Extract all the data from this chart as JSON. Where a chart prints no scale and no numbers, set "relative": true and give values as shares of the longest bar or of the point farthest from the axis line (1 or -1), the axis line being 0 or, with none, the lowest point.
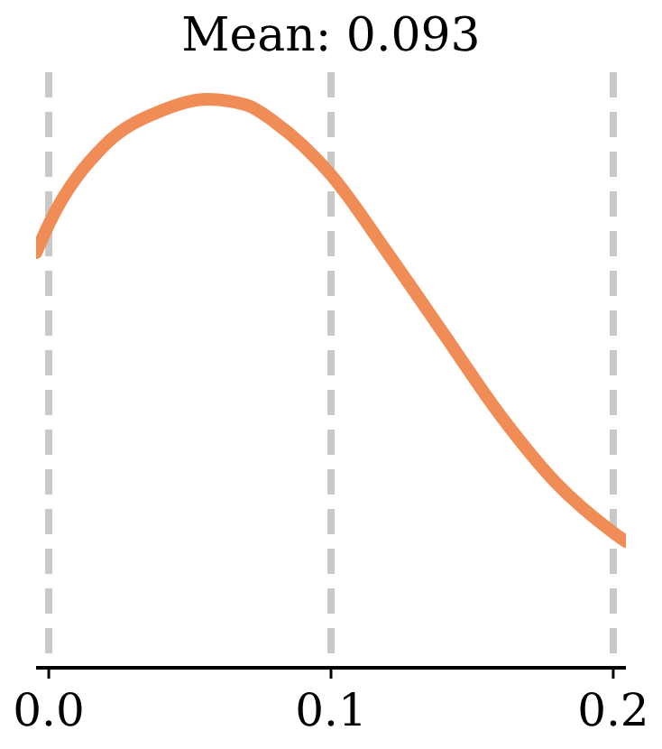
{
  "chart_data": {
    "type": "line",
    "title": "Mean: 0.093",
    "relative": true,
    "x": [
      -0.0045,
      0,
      0.02,
      0.04,
      0.056,
      0.07,
      0.08,
      0.1,
      0.12,
      0.14,
      0.16,
      0.18,
      0.2,
      0.2045
    ],
    "series": [
      {
        "color": "#f08c55",
        "values": [
          0.73,
          0.78,
          0.92,
          0.98,
          1.0,
          0.99,
          0.96,
          0.867,
          0.73,
          0.587,
          0.444,
          0.324,
          0.238,
          0.222
        ]
      }
    ],
    "xlim": [
      -0.0045,
      0.2045
    ],
    "xticks": [
      {
        "value": 0,
        "label": "0.0"
      },
      0.1,
      0.2
    ],
    "grid": "x",
    "tick_labels": "x",
    "line_style": "solid"
  }
}
